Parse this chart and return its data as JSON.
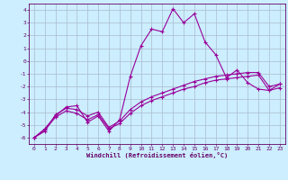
{
  "xlabel": "Windchill (Refroidissement éolien,°C)",
  "x": [
    0,
    1,
    2,
    3,
    4,
    5,
    6,
    7,
    8,
    9,
    10,
    11,
    12,
    13,
    14,
    15,
    16,
    17,
    18,
    19,
    20,
    21,
    22,
    23
  ],
  "line1": [
    -6.0,
    -5.3,
    -4.3,
    -3.6,
    -3.5,
    -4.8,
    -4.3,
    -5.5,
    -4.6,
    -1.2,
    1.2,
    2.5,
    2.3,
    4.1,
    3.0,
    3.7,
    1.5,
    0.5,
    -1.3,
    -0.7,
    -1.7,
    -2.2,
    -2.3,
    -1.8
  ],
  "line2": [
    -6.0,
    -5.5,
    -4.2,
    -3.7,
    -3.8,
    -4.3,
    -4.0,
    -5.2,
    -4.7,
    -3.8,
    -3.2,
    -2.8,
    -2.5,
    -2.2,
    -1.9,
    -1.6,
    -1.4,
    -1.2,
    -1.1,
    -1.0,
    -0.9,
    -0.9,
    -2.0,
    -1.8
  ],
  "line3": [
    -6.0,
    -5.4,
    -4.4,
    -3.9,
    -4.1,
    -4.6,
    -4.2,
    -5.3,
    -4.9,
    -4.1,
    -3.5,
    -3.1,
    -2.8,
    -2.5,
    -2.2,
    -2.0,
    -1.7,
    -1.5,
    -1.4,
    -1.3,
    -1.2,
    -1.1,
    -2.3,
    -2.1
  ],
  "line_color": "#990099",
  "marker": "+",
  "markersize": 3,
  "markeredgewidth": 0.8,
  "linewidth": 0.8,
  "ylim": [
    -6.5,
    4.5
  ],
  "xlim": [
    -0.5,
    23.5
  ],
  "yticks": [
    -6,
    -5,
    -4,
    -3,
    -2,
    -1,
    0,
    1,
    2,
    3,
    4
  ],
  "xticks": [
    0,
    1,
    2,
    3,
    4,
    5,
    6,
    7,
    8,
    9,
    10,
    11,
    12,
    13,
    14,
    15,
    16,
    17,
    18,
    19,
    20,
    21,
    22,
    23
  ],
  "bg_color": "#cceeff",
  "grid_color": "#aabbcc",
  "tick_fontsize": 4.5,
  "label_fontsize": 5.0,
  "spine_color": "#660066"
}
